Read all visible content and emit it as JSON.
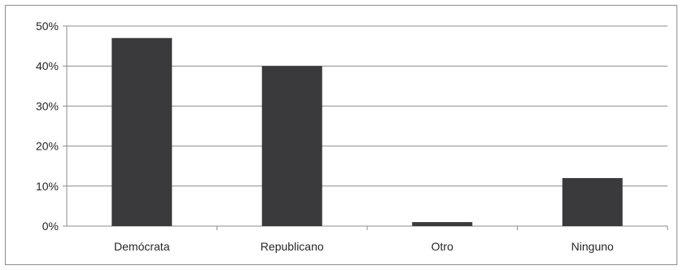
{
  "chart_data": {
    "type": "bar",
    "categories": [
      "Demócrata",
      "Republicano",
      "Otro",
      "Ninguno"
    ],
    "values": [
      47,
      40,
      1,
      12
    ],
    "y_ticks": [
      "0%",
      "10%",
      "20%",
      "30%",
      "40%",
      "50%"
    ],
    "ylim": [
      0,
      50
    ],
    "grid": true,
    "legend": "none",
    "bar_color": "#3a3a3c",
    "grid_color": "#8c8c8c"
  }
}
